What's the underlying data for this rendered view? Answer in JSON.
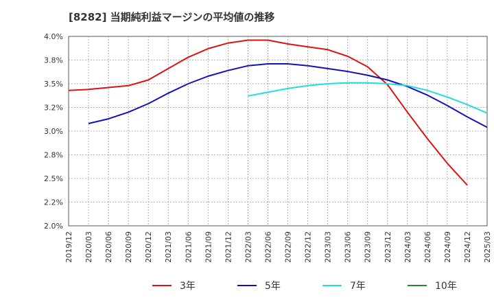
{
  "title": "[8282]  当期純利益マージンの平均値の推移",
  "chart_data": {
    "type": "line",
    "title": "[8282]  当期純利益マージンの平均値の推移",
    "xlabel": "",
    "ylabel": "",
    "ylim": [
      2.0,
      4.0
    ],
    "y_ticks": [
      "2.0%",
      "2.2%",
      "2.5%",
      "2.8%",
      "3.0%",
      "3.2%",
      "3.5%",
      "3.8%",
      "4.0%"
    ],
    "x_ticks": [
      "2019/12",
      "2020/03",
      "2020/06",
      "2020/09",
      "2020/12",
      "2021/03",
      "2021/06",
      "2021/09",
      "2021/12",
      "2022/03",
      "2022/06",
      "2022/09",
      "2022/12",
      "2023/03",
      "2023/06",
      "2023/09",
      "2023/12",
      "2024/03",
      "2024/06",
      "2024/09",
      "2024/12",
      "2025/03"
    ],
    "grid": true,
    "legend_position": "bottom",
    "series": [
      {
        "name": "3年",
        "color": "#dd1111",
        "start_index": 0,
        "values": [
          3.43,
          3.44,
          3.46,
          3.48,
          3.54,
          3.66,
          3.78,
          3.87,
          3.93,
          3.96,
          3.96,
          3.92,
          3.89,
          3.86,
          3.79,
          3.68,
          3.49,
          3.2,
          2.92,
          2.66,
          2.43
        ]
      },
      {
        "name": "5年",
        "color": "#1111bb",
        "start_index": 1,
        "values": [
          3.08,
          3.13,
          3.2,
          3.29,
          3.4,
          3.5,
          3.58,
          3.64,
          3.69,
          3.71,
          3.71,
          3.69,
          3.66,
          3.63,
          3.59,
          3.54,
          3.47,
          3.38,
          3.27,
          3.15,
          3.04
        ]
      },
      {
        "name": "7年",
        "color": "#22dddd",
        "start_index": 9,
        "values": [
          3.37,
          3.41,
          3.45,
          3.48,
          3.5,
          3.51,
          3.51,
          3.5,
          3.48,
          3.43,
          3.36,
          3.28,
          3.19
        ]
      },
      {
        "name": "10年",
        "color": "#228822",
        "start_index": 0,
        "values": []
      }
    ]
  }
}
